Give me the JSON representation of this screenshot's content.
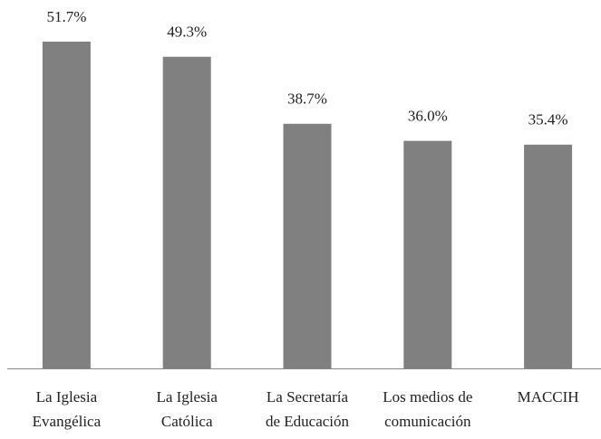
{
  "chart_data": {
    "type": "bar",
    "categories": [
      [
        "La Iglesia",
        "Evangélica"
      ],
      [
        "La Iglesia",
        "Católica"
      ],
      [
        "La Secretaría",
        "de Educación"
      ],
      [
        "Los medios de",
        "comunicación"
      ],
      [
        "MACCIH"
      ]
    ],
    "values": [
      51.7,
      49.3,
      38.7,
      36.0,
      35.4
    ],
    "value_labels": [
      "51.7%",
      "49.3%",
      "38.7%",
      "36.0%",
      "35.4%"
    ],
    "color": "#808080",
    "ylim": [
      0,
      58
    ]
  }
}
